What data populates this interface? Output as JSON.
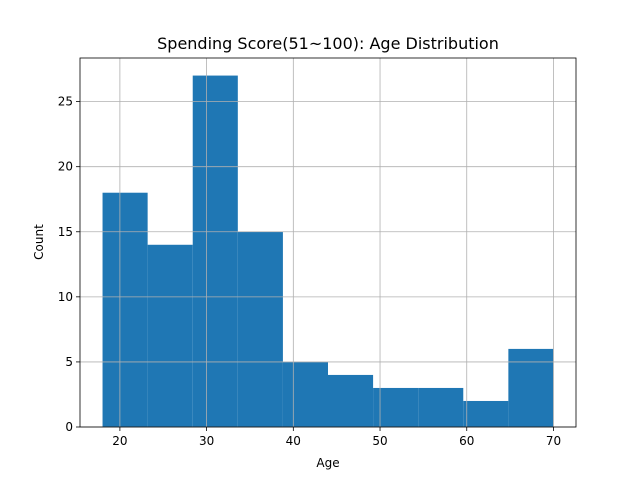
{
  "chart_data": {
    "type": "bar",
    "title": "Spending Score(51~100): Age Distribution",
    "xlabel": "Age",
    "ylabel": "Count",
    "bins": [
      {
        "start": 18.0,
        "end": 23.2,
        "count": 18
      },
      {
        "start": 23.2,
        "end": 28.4,
        "count": 14
      },
      {
        "start": 28.4,
        "end": 33.6,
        "count": 27
      },
      {
        "start": 33.6,
        "end": 38.8,
        "count": 15
      },
      {
        "start": 38.8,
        "end": 44.0,
        "count": 5
      },
      {
        "start": 44.0,
        "end": 49.2,
        "count": 4
      },
      {
        "start": 49.2,
        "end": 54.4,
        "count": 3
      },
      {
        "start": 54.4,
        "end": 59.6,
        "count": 3
      },
      {
        "start": 59.6,
        "end": 64.8,
        "count": 2
      },
      {
        "start": 64.8,
        "end": 70.0,
        "count": 6
      }
    ],
    "xlim": [
      15.4,
      72.6
    ],
    "ylim": [
      0,
      28.35
    ],
    "xticks": [
      20,
      30,
      40,
      50,
      60,
      70
    ],
    "yticks": [
      0,
      5,
      10,
      15,
      20,
      25
    ],
    "grid": true,
    "bar_color": "#1f77b4"
  }
}
